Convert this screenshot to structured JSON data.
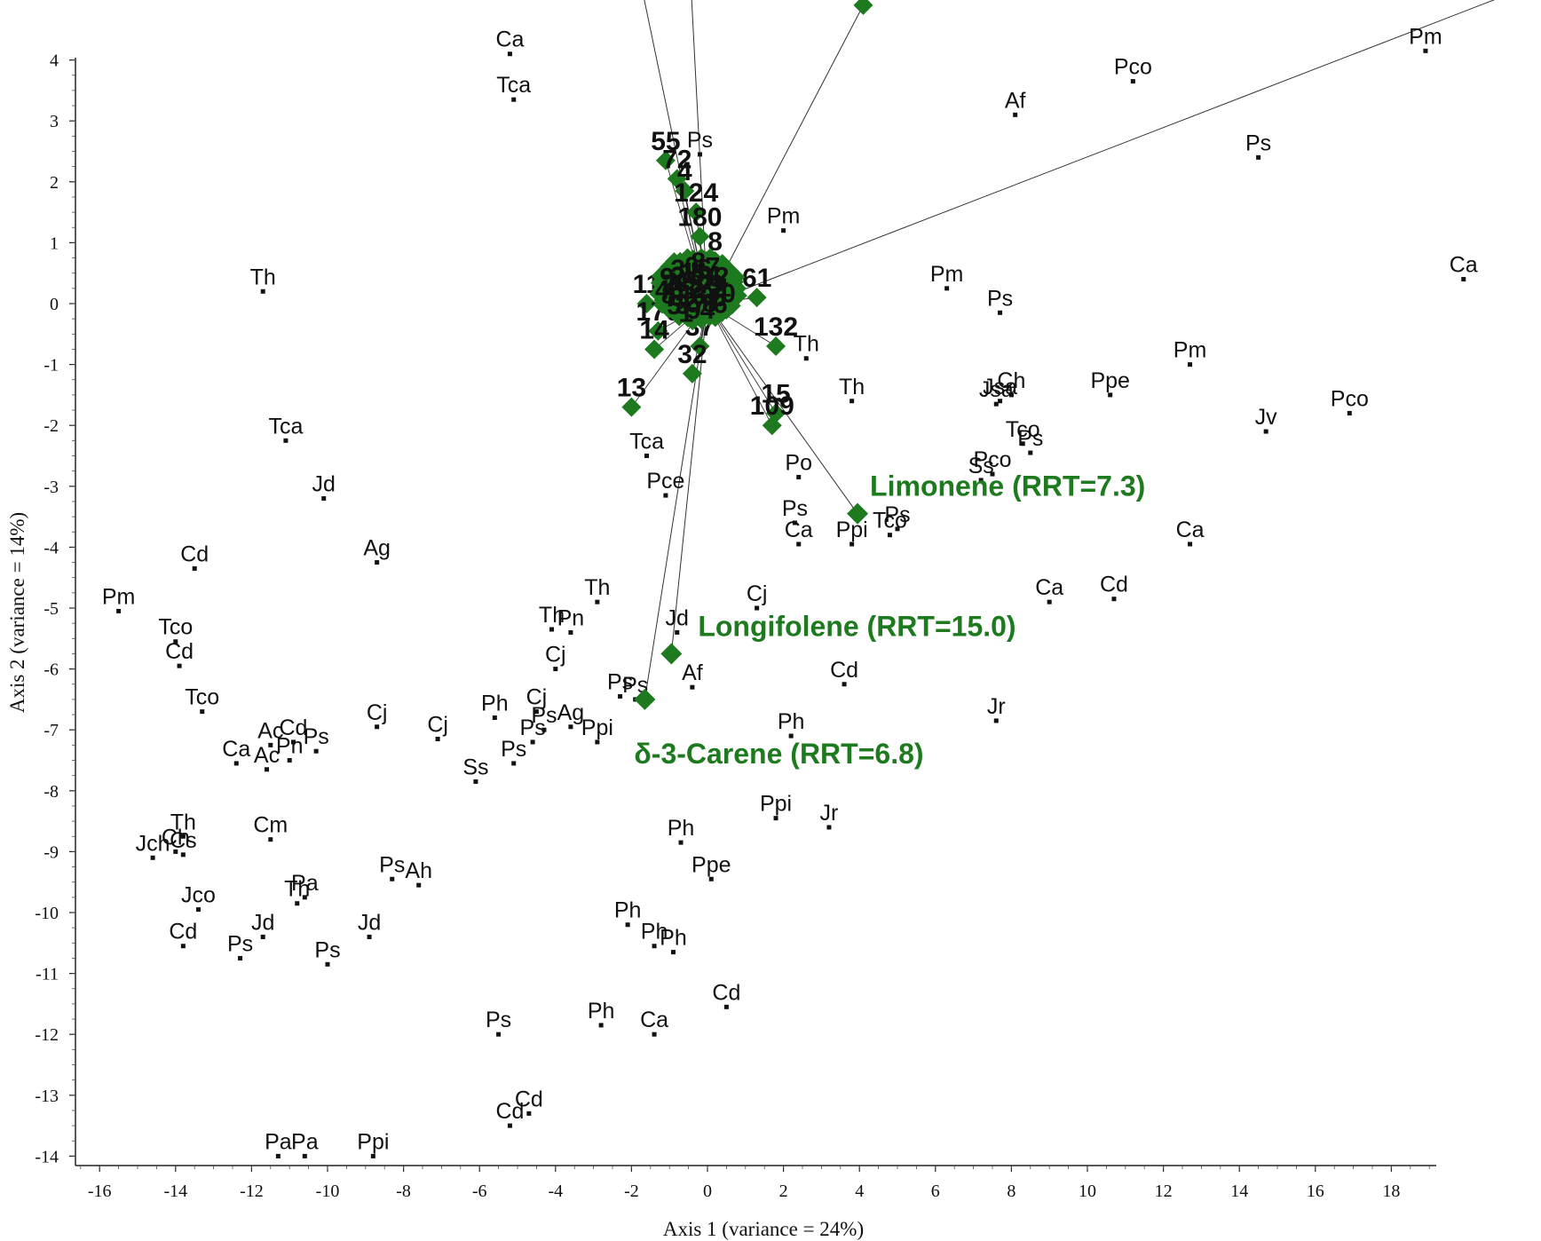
{
  "chart_data": {
    "type": "scatter",
    "xlabel": "Axis 1 (variance = 24%)",
    "ylabel": "Axis 2 (variance = 14%)",
    "xlim": [
      -16.5,
      19.0
    ],
    "ylim": [
      -14.0,
      4.0
    ],
    "x_ticks": [
      -16,
      -14,
      -12,
      -10,
      -8,
      -6,
      -4,
      -2,
      0,
      2,
      4,
      6,
      8,
      10,
      12,
      14,
      16,
      18
    ],
    "y_ticks": [
      4,
      3,
      2,
      1,
      0,
      -1,
      -2,
      -3,
      -4,
      -5,
      -6,
      -7,
      -8,
      -9,
      -10,
      -11,
      -12,
      -13,
      -14
    ],
    "samples": [
      {
        "label": "Ca",
        "x": -5.2,
        "y": 4.1
      },
      {
        "label": "Tca",
        "x": -5.1,
        "y": 3.35
      },
      {
        "label": "Pm",
        "x": 18.9,
        "y": 4.15
      },
      {
        "label": "Pco",
        "x": 11.2,
        "y": 3.65
      },
      {
        "label": "Af",
        "x": 8.1,
        "y": 3.1
      },
      {
        "label": "Ps",
        "x": 14.5,
        "y": 2.4
      },
      {
        "label": "Ps",
        "x": -0.2,
        "y": 2.45
      },
      {
        "label": "Pm",
        "x": 2.0,
        "y": 1.2
      },
      {
        "label": "Th",
        "x": -11.7,
        "y": 0.2
      },
      {
        "label": "Ca",
        "x": 19.9,
        "y": 0.4
      },
      {
        "label": "Pm",
        "x": 6.3,
        "y": 0.25
      },
      {
        "label": "Ps",
        "x": 7.7,
        "y": -0.15
      },
      {
        "label": "Th",
        "x": 2.6,
        "y": -0.9
      },
      {
        "label": "Pm",
        "x": 12.7,
        "y": -1.0
      },
      {
        "label": "Th",
        "x": 3.8,
        "y": -1.6
      },
      {
        "label": "Jsa",
        "x": 7.6,
        "y": -1.65
      },
      {
        "label": "Jsa",
        "x": 7.7,
        "y": -1.6
      },
      {
        "label": "Ch",
        "x": 8.0,
        "y": -1.5
      },
      {
        "label": "Ppe",
        "x": 10.6,
        "y": -1.5
      },
      {
        "label": "Pco",
        "x": 16.9,
        "y": -1.8
      },
      {
        "label": "Jv",
        "x": 14.7,
        "y": -2.1
      },
      {
        "label": "Tco",
        "x": 8.3,
        "y": -2.3
      },
      {
        "label": "Ps",
        "x": 8.5,
        "y": -2.45
      },
      {
        "label": "Pco",
        "x": 7.5,
        "y": -2.8
      },
      {
        "label": "Ss",
        "x": 7.2,
        "y": -2.9
      },
      {
        "label": "Tca",
        "x": -11.1,
        "y": -2.25
      },
      {
        "label": "Tca",
        "x": -1.6,
        "y": -2.5
      },
      {
        "label": "Po",
        "x": 2.4,
        "y": -2.85
      },
      {
        "label": "Pce",
        "x": -1.1,
        "y": -3.15
      },
      {
        "label": "Jd",
        "x": -10.1,
        "y": -3.2
      },
      {
        "label": "Ps",
        "x": 2.3,
        "y": -3.6
      },
      {
        "label": "Ca",
        "x": 2.4,
        "y": -3.95
      },
      {
        "label": "Ppi",
        "x": 3.8,
        "y": -3.95
      },
      {
        "label": "Tco",
        "x": 4.8,
        "y": -3.8
      },
      {
        "label": "Ps",
        "x": 5.0,
        "y": -3.7
      },
      {
        "label": "Ca",
        "x": 12.7,
        "y": -3.95
      },
      {
        "label": "Ag",
        "x": -8.7,
        "y": -4.25
      },
      {
        "label": "Cd",
        "x": -13.5,
        "y": -4.35
      },
      {
        "label": "Pm",
        "x": -15.5,
        "y": -5.05
      },
      {
        "label": "Th",
        "x": -2.9,
        "y": -4.9
      },
      {
        "label": "Cj",
        "x": 1.3,
        "y": -5.0
      },
      {
        "label": "Ca",
        "x": 9.0,
        "y": -4.9
      },
      {
        "label": "Cd",
        "x": 10.7,
        "y": -4.85
      },
      {
        "label": "Tco",
        "x": -14.0,
        "y": -5.55
      },
      {
        "label": "Th",
        "x": -4.1,
        "y": -5.35
      },
      {
        "label": "Pn",
        "x": -3.6,
        "y": -5.4
      },
      {
        "label": "Jd",
        "x": -0.8,
        "y": -5.4
      },
      {
        "label": "Cd",
        "x": -13.9,
        "y": -5.95
      },
      {
        "label": "Cj",
        "x": -4.0,
        "y": -6.0
      },
      {
        "label": "Ps",
        "x": -2.3,
        "y": -6.45
      },
      {
        "label": "Ps",
        "x": -1.9,
        "y": -6.5
      },
      {
        "label": "Af",
        "x": -0.4,
        "y": -6.3
      },
      {
        "label": "Cd",
        "x": 3.6,
        "y": -6.25
      },
      {
        "label": "Tco",
        "x": -13.3,
        "y": -6.7
      },
      {
        "label": "Cj",
        "x": -8.7,
        "y": -6.95
      },
      {
        "label": "Ph",
        "x": -5.6,
        "y": -6.8
      },
      {
        "label": "Cj",
        "x": -4.5,
        "y": -6.7
      },
      {
        "label": "Ps",
        "x": -4.3,
        "y": -7.0
      },
      {
        "label": "Ps",
        "x": -4.6,
        "y": -7.2
      },
      {
        "label": "Ag",
        "x": -3.6,
        "y": -6.95
      },
      {
        "label": "Cj",
        "x": -7.1,
        "y": -7.15
      },
      {
        "label": "Ppi",
        "x": -2.9,
        "y": -7.2
      },
      {
        "label": "Ph",
        "x": 2.2,
        "y": -7.1
      },
      {
        "label": "Jr",
        "x": 7.6,
        "y": -6.85
      },
      {
        "label": "Ac",
        "x": -11.5,
        "y": -7.25
      },
      {
        "label": "Cd",
        "x": -10.9,
        "y": -7.2
      },
      {
        "label": "Pn",
        "x": -11.0,
        "y": -7.5
      },
      {
        "label": "Ps",
        "x": -10.3,
        "y": -7.35
      },
      {
        "label": "Ca",
        "x": -12.4,
        "y": -7.55
      },
      {
        "label": "Ac",
        "x": -11.6,
        "y": -7.65
      },
      {
        "label": "Ps",
        "x": -5.1,
        "y": -7.55
      },
      {
        "label": "Ss",
        "x": -6.1,
        "y": -7.85
      },
      {
        "label": "Ppi",
        "x": 1.8,
        "y": -8.45
      },
      {
        "label": "Jr",
        "x": 3.2,
        "y": -8.6
      },
      {
        "label": "Th",
        "x": -13.8,
        "y": -8.75
      },
      {
        "label": "Ch",
        "x": -14.0,
        "y": -9.0
      },
      {
        "label": "Jch",
        "x": -14.6,
        "y": -9.1
      },
      {
        "label": "Cs",
        "x": -13.8,
        "y": -9.05
      },
      {
        "label": "Cm",
        "x": -11.5,
        "y": -8.8
      },
      {
        "label": "Ph",
        "x": -0.7,
        "y": -8.85
      },
      {
        "label": "Ppe",
        "x": 0.1,
        "y": -9.45
      },
      {
        "label": "Ps",
        "x": -8.3,
        "y": -9.45
      },
      {
        "label": "Ah",
        "x": -7.6,
        "y": -9.55
      },
      {
        "label": "Pa",
        "x": -10.6,
        "y": -9.75
      },
      {
        "label": "Th",
        "x": -10.8,
        "y": -9.85
      },
      {
        "label": "Jco",
        "x": -13.4,
        "y": -9.95
      },
      {
        "label": "Jd",
        "x": -11.7,
        "y": -10.4
      },
      {
        "label": "Jd",
        "x": -8.9,
        "y": -10.4
      },
      {
        "label": "Cd",
        "x": -13.8,
        "y": -10.55
      },
      {
        "label": "Ps",
        "x": -12.3,
        "y": -10.75
      },
      {
        "label": "Ps",
        "x": -10.0,
        "y": -10.85
      },
      {
        "label": "Ph",
        "x": -2.1,
        "y": -10.2
      },
      {
        "label": "Ph",
        "x": -1.4,
        "y": -10.55
      },
      {
        "label": "Ph",
        "x": -0.9,
        "y": -10.65
      },
      {
        "label": "Cd",
        "x": 0.5,
        "y": -11.55
      },
      {
        "label": "Ps",
        "x": -5.5,
        "y": -12.0
      },
      {
        "label": "Ph",
        "x": -2.8,
        "y": -11.85
      },
      {
        "label": "Ca",
        "x": -1.4,
        "y": -12.0
      },
      {
        "label": "Cd",
        "x": -4.7,
        "y": -13.3
      },
      {
        "label": "Cd",
        "x": -5.2,
        "y": -13.5
      },
      {
        "label": "Pa",
        "x": -11.3,
        "y": -14.0
      },
      {
        "label": "Pa",
        "x": -10.6,
        "y": -14.0
      },
      {
        "label": "Ppi",
        "x": -8.8,
        "y": -14.0
      }
    ],
    "variables": [
      {
        "label": "55",
        "x": -1.1,
        "y": 2.35
      },
      {
        "label": "72",
        "x": -0.8,
        "y": 2.05
      },
      {
        "label": "4",
        "x": -0.6,
        "y": 1.85
      },
      {
        "label": "124",
        "x": -0.3,
        "y": 1.5
      },
      {
        "label": "180",
        "x": -0.2,
        "y": 1.1
      },
      {
        "label": "8",
        "x": 0.2,
        "y": 0.7
      },
      {
        "label": "61",
        "x": 1.3,
        "y": 0.1
      },
      {
        "label": "11",
        "x": -1.6,
        "y": 0.0
      },
      {
        "label": "0",
        "x": 0.5,
        "y": -0.1
      },
      {
        "label": "132",
        "x": 1.8,
        "y": -0.7
      },
      {
        "label": "176",
        "x": -1.3,
        "y": -0.45
      },
      {
        "label": "37",
        "x": -0.2,
        "y": -0.7
      },
      {
        "label": "14",
        "x": -1.4,
        "y": -0.75
      },
      {
        "label": "13",
        "x": -2.0,
        "y": -1.7
      },
      {
        "label": "32",
        "x": -0.4,
        "y": -1.15
      },
      {
        "label": "15",
        "x": 1.8,
        "y": -1.8
      },
      {
        "label": "109",
        "x": 1.7,
        "y": -2.0
      }
    ],
    "vectors": [
      {
        "label": "Limonene (RRT=7.3)",
        "x": 3.95,
        "y": -3.45
      },
      {
        "label": "Longifolene (RRT=15.0)",
        "x": -0.95,
        "y": -5.75
      },
      {
        "label": "δ-3-Carene (RRT=6.8)",
        "x": -1.65,
        "y": -6.5
      }
    ]
  }
}
